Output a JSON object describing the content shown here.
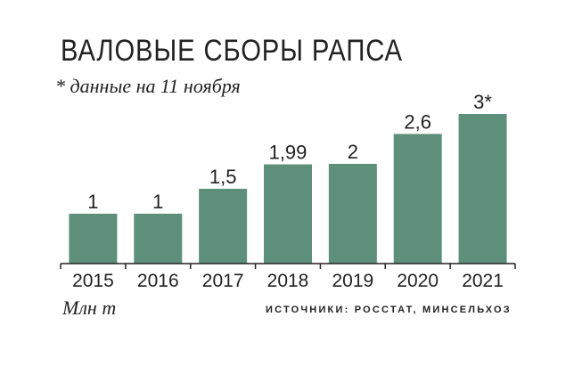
{
  "chart_data": {
    "type": "bar",
    "title": "ВАЛОВЫЕ СБОРЫ РАПСА",
    "subtitle": "* данные на 11 ноября",
    "categories": [
      "2015",
      "2016",
      "2017",
      "2018",
      "2019",
      "2020",
      "2021"
    ],
    "values": [
      1,
      1,
      1.5,
      1.99,
      2,
      2.6,
      3
    ],
    "value_labels": [
      "1",
      "1",
      "1,5",
      "1,99",
      "2",
      "2,6",
      "3*"
    ],
    "unit_label": "Млн т",
    "source": "ИСТОЧНИКИ: РОССТАТ, МИНСЕЛЬХОЗ",
    "ylim": [
      0,
      3
    ],
    "grid": false,
    "bar_color": "#5e8f7b"
  }
}
